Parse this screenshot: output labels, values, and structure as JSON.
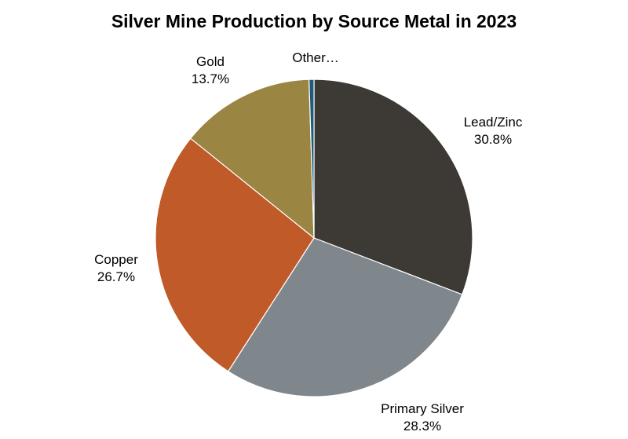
{
  "chart_data": {
    "type": "pie",
    "title": "Silver Mine Production by Source Metal in 2023",
    "slices": [
      {
        "name": "Lead/Zinc",
        "label": "Lead/Zinc",
        "value_label": "30.8%",
        "value": 30.8,
        "color": "#3d3935"
      },
      {
        "name": "Primary Silver",
        "label": "Primary Silver",
        "value_label": "28.3%",
        "value": 28.3,
        "color": "#7f868c"
      },
      {
        "name": "Copper",
        "label": "Copper",
        "value_label": "26.7%",
        "value": 26.7,
        "color": "#c05a28"
      },
      {
        "name": "Gold",
        "label": "Gold",
        "value_label": "13.7%",
        "value": 13.7,
        "color": "#9a8542"
      },
      {
        "name": "Other",
        "label": "Other…",
        "value_label": "",
        "value": 0.5,
        "color": "#1f5a7a"
      }
    ],
    "start_angle_deg": 0,
    "direction": "clockwise",
    "slice_border_color": "#ffffff",
    "legend": "none"
  }
}
